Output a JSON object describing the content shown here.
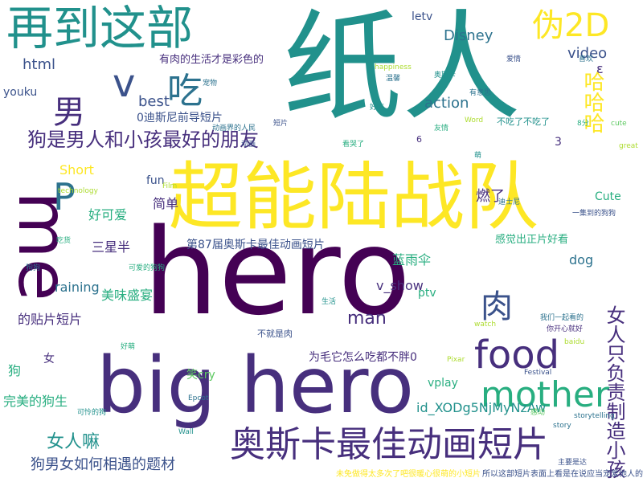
{
  "words": {
    "w01": "纸人",
    "w02": "hero",
    "w03": "big hero",
    "w04": "超能陆战队",
    "w05": "再到这部",
    "w06": "奥斯卡最佳动画短片",
    "w07": "me",
    "w08": "food",
    "w09": "mother",
    "w10": "男",
    "w11": "v",
    "w12": "吃",
    "w13": "伪2D",
    "w14": "肉",
    "w15": "狗是男人和小孩最好的朋友",
    "w16": "P",
    "w17": "女人只负责制造小孩",
    "w18": "哈哈哈",
    "w19": "Disney",
    "w20": "第87届奥斯卡最佳动画短片",
    "w21": "狗男女如何相遇的题材",
    "w22": "女人嘛",
    "w23": "完美的狗生",
    "w24": "id_XODg5NjMyNzAw",
    "w25": "为毛它怎么吃都不胖0",
    "w26": "action",
    "w27": "video",
    "w28": "best",
    "w29": "0迪斯尼前导短片",
    "w30": "有肉的生活才是彩色的",
    "w31": "html",
    "w32": "youku",
    "w33": "Short",
    "w34": "好可爱",
    "w35": "简单",
    "w36": "三星半",
    "w37": "燃了",
    "w38": "感觉出正片好看",
    "w39": "蓝雨伞",
    "w40": "v_show",
    "w41": "dog",
    "w42": "man",
    "w43": "ptv",
    "w44": "vplay",
    "w45": "的贴片短片",
    "w46": "美味盛宴",
    "w47": "raining",
    "w48": "笑cry",
    "w49": "狗",
    "w50": "女",
    "w51": "fun",
    "w52": "letv",
    "w53": "Cute",
    "w54": "3",
    "w55": "ε",
    "w56": "不吃了不吃了",
    "w57": "未免做得太多次了吧很暖心很萌的小短片",
    "w58": "所以这部短片表面上看是在说应当宠爱他人的生活方式",
    "w59": "不就是肉",
    "w60": "technology",
    "w61": "Film",
    "w62": "Pixar",
    "w63": "Festival",
    "w64": "baidu",
    "w65": "watch",
    "w66": "Wall",
    "w67": "Epcot",
    "w68": "great",
    "w69": "Word",
    "w70": "看哭了",
    "w71": "动画界的人民",
    "w72": "我们一起看的",
    "w73": "你开心就好",
    "w74": "喜欢",
    "w75": "奥斯卡",
    "w76": "萌",
    "w77": "happiness",
    "w78": "story",
    "w79": "storytelling",
    "w80": "cute",
    "w81": "6",
    "w82": "8分",
    "w83": "好吃",
    "w84": "短片",
    "w85": "动画",
    "w86": "迪士尼",
    "w87": "一集到的狗狗",
    "w88": "主要是达",
    "w89": "可怜的狗",
    "w90": "温馨",
    "w91": "有意思",
    "w92": "好萌",
    "w93": "吃货",
    "w94": "感动",
    "w95": "狗狗",
    "w96": "可爱的狗狗",
    "w97": "宠物",
    "w98": "生活",
    "w99": "爱情",
    "w100": "友情"
  }
}
